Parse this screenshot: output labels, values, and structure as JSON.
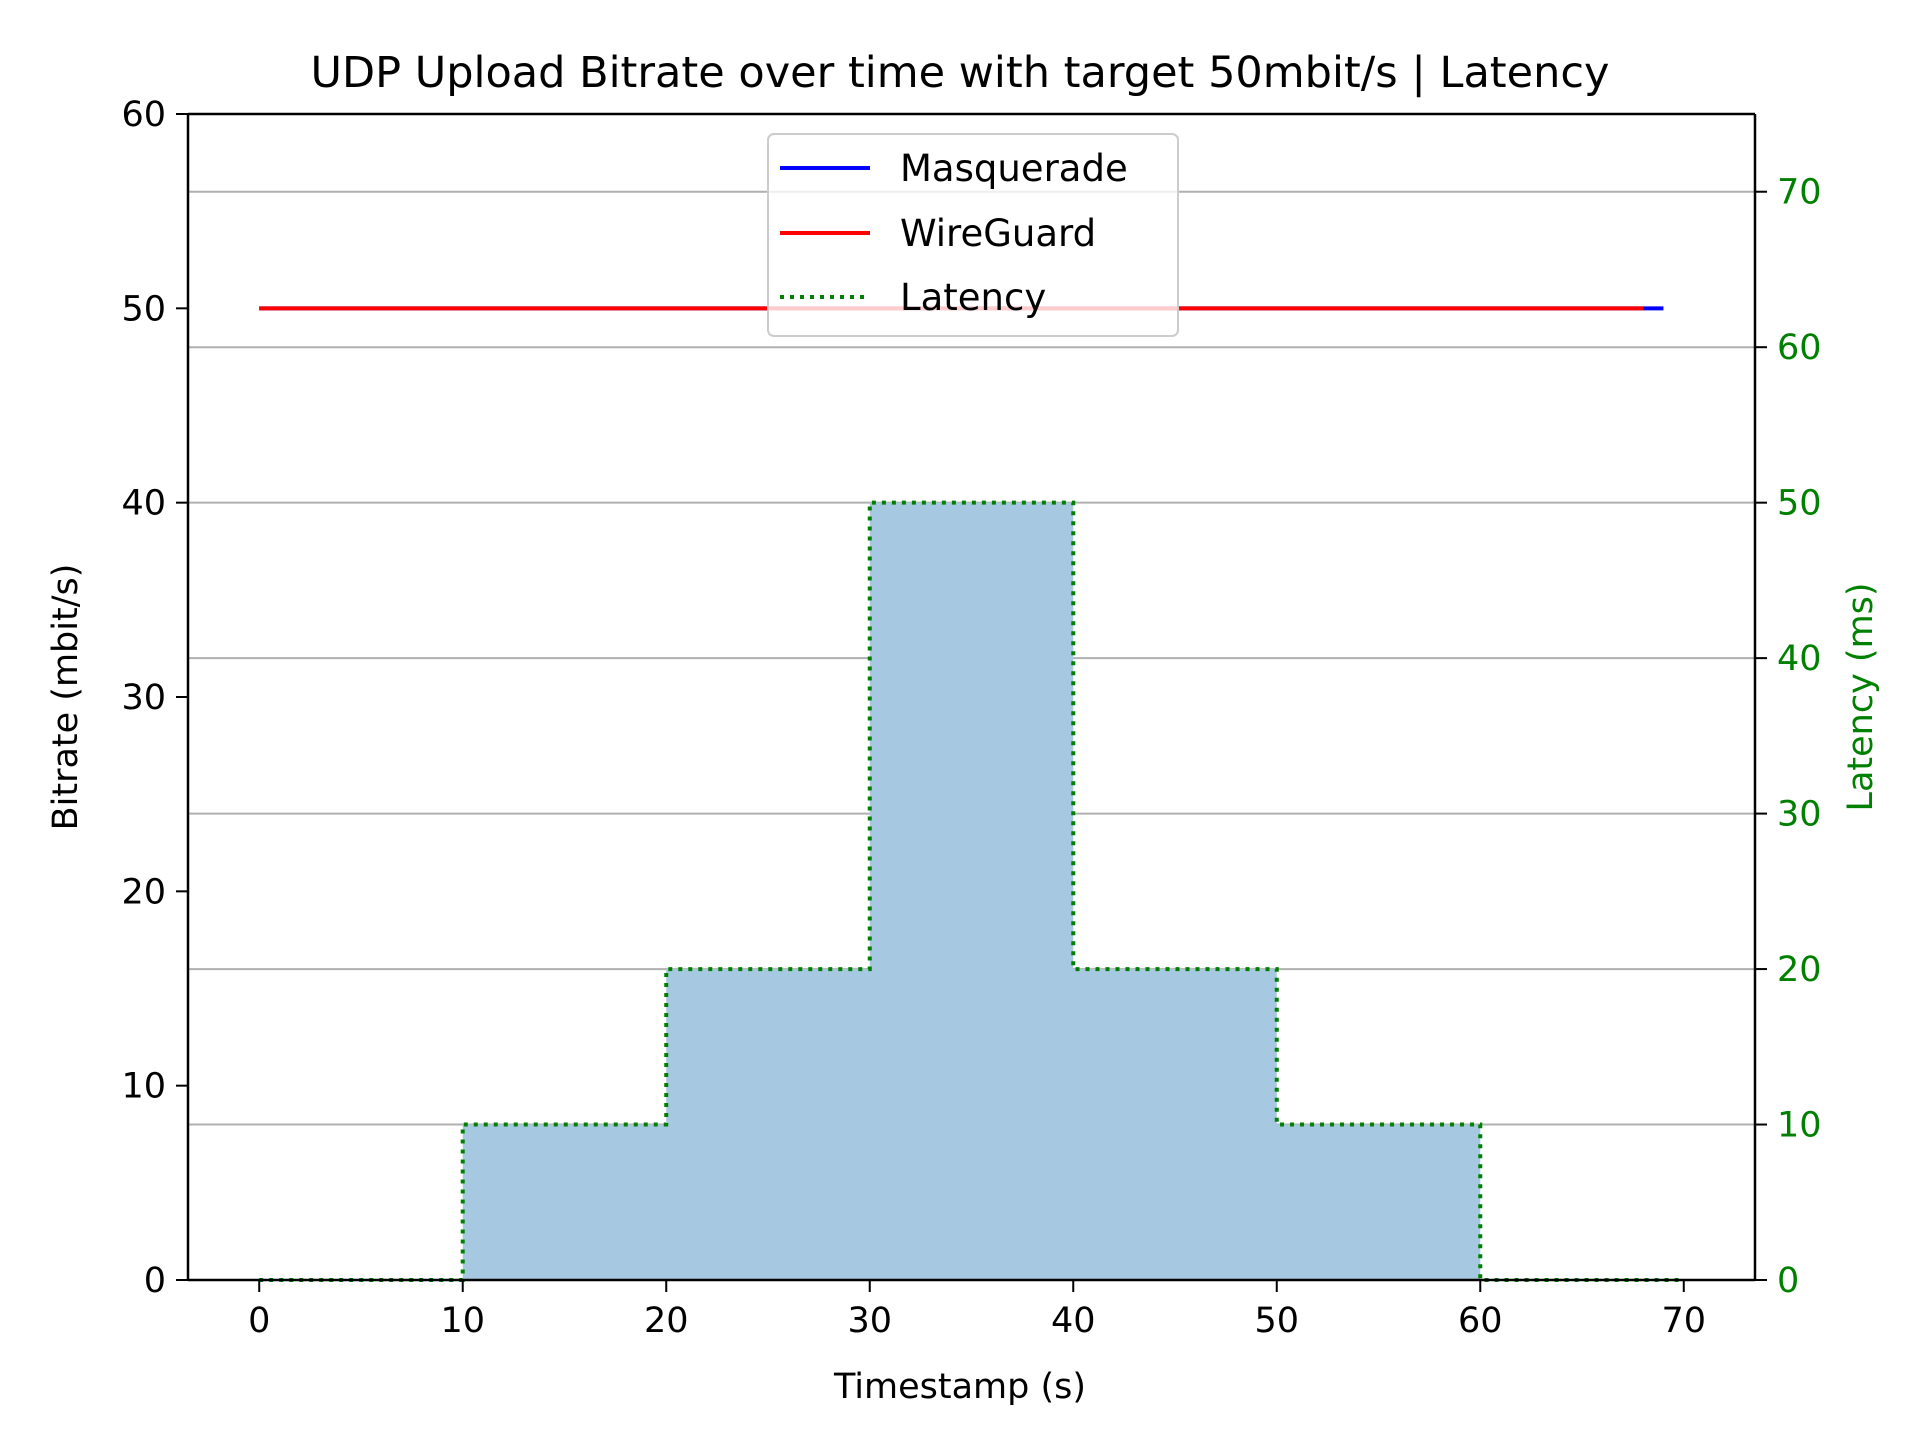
{
  "chart_data": {
    "type": "line",
    "title": "UDP Upload Bitrate over time with target 50mbit/s | Latency",
    "xlabel": "Timestamp (s)",
    "ylabel": "Bitrate (mbit/s)",
    "y2label": "Latency (ms)",
    "xlim": [
      -3.5,
      73.5
    ],
    "ylim": [
      0,
      60
    ],
    "y2lim": [
      0,
      75
    ],
    "xticks": [
      0,
      10,
      20,
      30,
      40,
      50,
      60,
      70
    ],
    "yticks": [
      0,
      10,
      20,
      30,
      40,
      50,
      60
    ],
    "y2ticks": [
      0,
      10,
      20,
      30,
      40,
      50,
      60,
      70
    ],
    "grid": "horizontal lines at right-axis ticks",
    "legend_placement": "upper center",
    "series": [
      {
        "name": "Masquerade",
        "axis": "left",
        "color": "#0000ff",
        "style": "solid",
        "x": [
          0,
          69
        ],
        "y": [
          50,
          50
        ]
      },
      {
        "name": "WireGuard",
        "axis": "left",
        "color": "#ff0000",
        "style": "solid",
        "x": [
          0,
          68
        ],
        "y": [
          50,
          50
        ]
      },
      {
        "name": "Latency",
        "axis": "right",
        "color": "#008000",
        "style": "dotted",
        "fill_color": "#a6c8e0",
        "x": [
          0,
          10,
          10,
          20,
          20,
          30,
          30,
          40,
          40,
          50,
          50,
          60,
          60,
          70
        ],
        "y": [
          0,
          0,
          10,
          10,
          20,
          20,
          50,
          50,
          20,
          20,
          10,
          10,
          0,
          0
        ]
      }
    ]
  }
}
